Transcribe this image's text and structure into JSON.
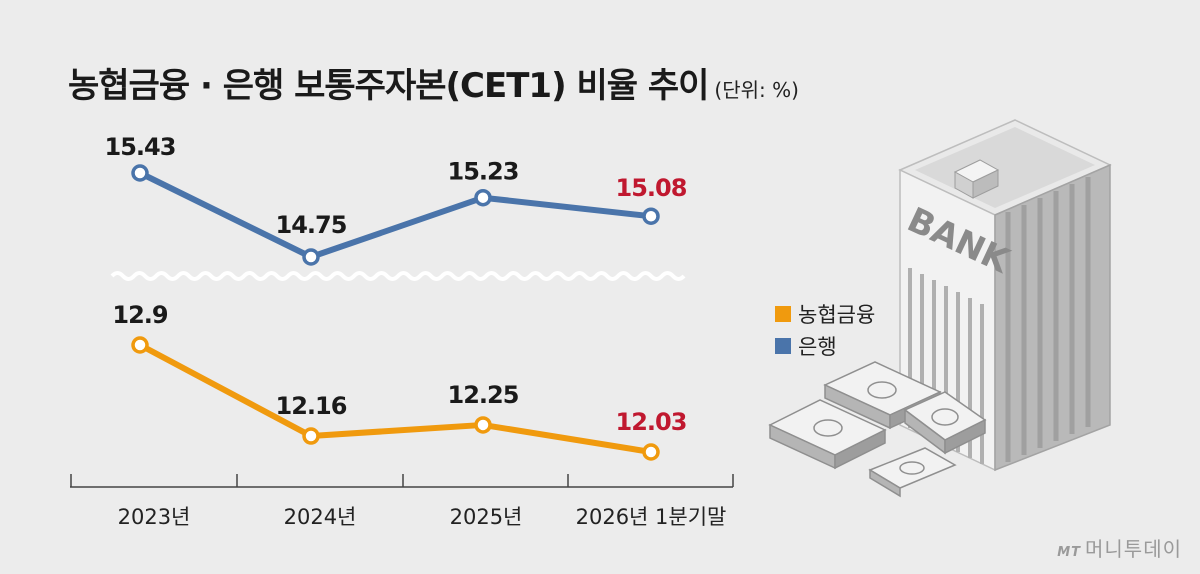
{
  "title": "농협금융 · 은행 보통주자본(CET1) 비율 추이",
  "unit_label": "(단위: %)",
  "watermark_logo": "MT",
  "watermark_text": "머니투데이",
  "colors": {
    "bank": "#4a74aa",
    "nonghyup": "#f09a0e",
    "highlight": "#c0182f",
    "label": "#1a1a1a"
  },
  "chart_data": {
    "type": "line",
    "categories": [
      "2023년",
      "2024년",
      "2025년",
      "2026년 1분기말"
    ],
    "axis_break": true,
    "grid": false,
    "legend_position": "right",
    "series": [
      {
        "name": "은행",
        "values": [
          15.43,
          14.75,
          15.23,
          15.08
        ],
        "color": "#4a74aa"
      },
      {
        "name": "농협금융",
        "values": [
          12.9,
          12.16,
          12.25,
          12.03
        ],
        "color": "#f09a0e"
      }
    ],
    "data_labels": {
      "은행": [
        "15.43",
        "14.75",
        "15.23",
        "15.08"
      ],
      "농협금융": [
        "12.9",
        "12.16",
        "12.25",
        "12.03"
      ]
    },
    "highlighted_index": 3
  },
  "legend": [
    {
      "label": "농협금융",
      "color": "#f09a0e"
    },
    {
      "label": "은행",
      "color": "#4a74aa"
    }
  ]
}
